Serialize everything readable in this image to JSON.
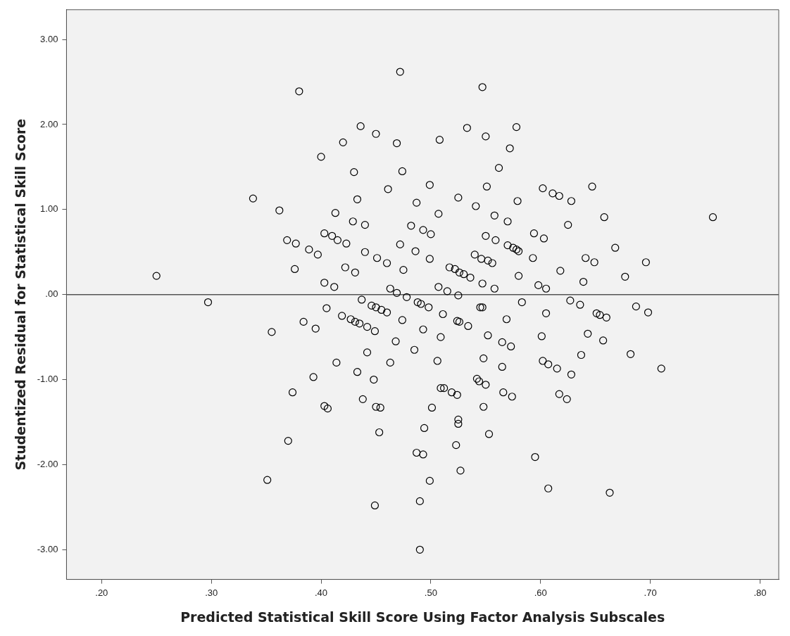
{
  "chart_data": {
    "type": "scatter",
    "xlabel": "Predicted Statistical Skill Score Using Factor Analysis Subscales",
    "ylabel": "Studentized Residual for Statistical Skill Score",
    "color": "#000000",
    "marker": "circle",
    "legend": false,
    "x": [
      0.472,
      0.38,
      0.436,
      0.45,
      0.42,
      0.469,
      0.4,
      0.43,
      0.474,
      0.499,
      0.461,
      0.433,
      0.487,
      0.338,
      0.362,
      0.413,
      0.429,
      0.44,
      0.482,
      0.493,
      0.5,
      0.403,
      0.41,
      0.415,
      0.423,
      0.369,
      0.377,
      0.389,
      0.397,
      0.44,
      0.451,
      0.46,
      0.472,
      0.486,
      0.499,
      0.376,
      0.422,
      0.431,
      0.475,
      0.403,
      0.412,
      0.463,
      0.469,
      0.25,
      0.547,
      0.533,
      0.578,
      0.508,
      0.55,
      0.572,
      0.562,
      0.551,
      0.525,
      0.541,
      0.579,
      0.507,
      0.558,
      0.57,
      0.602,
      0.611,
      0.617,
      0.628,
      0.647,
      0.658,
      0.757,
      0.625,
      0.55,
      0.559,
      0.57,
      0.575,
      0.578,
      0.58,
      0.594,
      0.603,
      0.54,
      0.546,
      0.552,
      0.556,
      0.593,
      0.517,
      0.522,
      0.526,
      0.53,
      0.536,
      0.547,
      0.558,
      0.58,
      0.618,
      0.641,
      0.649,
      0.668,
      0.696,
      0.677,
      0.639,
      0.598,
      0.605,
      0.507,
      0.515,
      0.525,
      0.583,
      0.627,
      0.636,
      0.687,
      0.698,
      0.651,
      0.654,
      0.66,
      0.498,
      0.511,
      0.524,
      0.526,
      0.534,
      0.545,
      0.547,
      0.569,
      0.605,
      0.552,
      0.565,
      0.573,
      0.601,
      0.643,
      0.657,
      0.637,
      0.682,
      0.71,
      0.602,
      0.607,
      0.615,
      0.628,
      0.509,
      0.493,
      0.506,
      0.548,
      0.565,
      0.542,
      0.544,
      0.55,
      0.509,
      0.512,
      0.519,
      0.524,
      0.566,
      0.574,
      0.617,
      0.624,
      0.501,
      0.548,
      0.525,
      0.525,
      0.494,
      0.553,
      0.523,
      0.487,
      0.493,
      0.595,
      0.527,
      0.499,
      0.607,
      0.663,
      0.437,
      0.446,
      0.45,
      0.455,
      0.46,
      0.405,
      0.419,
      0.427,
      0.431,
      0.435,
      0.442,
      0.449,
      0.474,
      0.478,
      0.488,
      0.491,
      0.468,
      0.485,
      0.442,
      0.463,
      0.414,
      0.433,
      0.448,
      0.393,
      0.374,
      0.403,
      0.406,
      0.438,
      0.45,
      0.454,
      0.453,
      0.37,
      0.351,
      0.449,
      0.49,
      0.49,
      0.355,
      0.384,
      0.395,
      0.297
    ],
    "values": [
      2.62,
      2.39,
      1.98,
      1.89,
      1.79,
      1.78,
      1.62,
      1.44,
      1.45,
      1.29,
      1.24,
      1.12,
      1.08,
      1.13,
      0.99,
      0.96,
      0.86,
      0.82,
      0.81,
      0.76,
      0.71,
      0.72,
      0.69,
      0.64,
      0.6,
      0.64,
      0.6,
      0.53,
      0.47,
      0.5,
      0.43,
      0.37,
      0.59,
      0.51,
      0.42,
      0.3,
      0.32,
      0.26,
      0.29,
      0.14,
      0.09,
      0.07,
      0.02,
      0.22,
      2.44,
      1.96,
      1.97,
      1.82,
      1.86,
      1.72,
      1.49,
      1.27,
      1.14,
      1.04,
      1.1,
      0.95,
      0.93,
      0.86,
      1.25,
      1.19,
      1.16,
      1.1,
      1.27,
      0.91,
      0.91,
      0.82,
      0.69,
      0.64,
      0.58,
      0.55,
      0.53,
      0.51,
      0.72,
      0.66,
      0.47,
      0.42,
      0.4,
      0.37,
      0.43,
      0.32,
      0.3,
      0.26,
      0.24,
      0.2,
      0.13,
      0.07,
      0.22,
      0.28,
      0.43,
      0.38,
      0.55,
      0.38,
      0.21,
      0.15,
      0.11,
      0.07,
      0.09,
      0.04,
      -0.01,
      -0.09,
      -0.07,
      -0.12,
      -0.14,
      -0.21,
      -0.22,
      -0.24,
      -0.27,
      -0.15,
      -0.23,
      -0.31,
      -0.32,
      -0.37,
      -0.15,
      -0.15,
      -0.29,
      -0.22,
      -0.48,
      -0.56,
      -0.61,
      -0.49,
      -0.46,
      -0.54,
      -0.71,
      -0.7,
      -0.87,
      -0.78,
      -0.82,
      -0.87,
      -0.94,
      -0.5,
      -0.41,
      -0.78,
      -0.75,
      -0.85,
      -0.99,
      -1.02,
      -1.06,
      -1.1,
      -1.1,
      -1.15,
      -1.18,
      -1.15,
      -1.2,
      -1.17,
      -1.23,
      -1.33,
      -1.32,
      -1.47,
      -1.52,
      -1.57,
      -1.64,
      -1.77,
      -1.86,
      -1.88,
      -1.91,
      -2.07,
      -2.19,
      -2.28,
      -2.33,
      -0.06,
      -0.13,
      -0.15,
      -0.18,
      -0.21,
      -0.16,
      -0.25,
      -0.29,
      -0.32,
      -0.34,
      -0.38,
      -0.43,
      -0.3,
      -0.03,
      -0.09,
      -0.11,
      -0.55,
      -0.65,
      -0.68,
      -0.8,
      -0.8,
      -0.91,
      -1.0,
      -0.97,
      -1.15,
      -1.31,
      -1.34,
      -1.23,
      -1.32,
      -1.33,
      -1.62,
      -1.72,
      -2.18,
      -2.48,
      -2.43,
      -3.0,
      -0.44,
      -0.32,
      -0.4,
      -0.09
    ],
    "xlim": [
      0.168,
      0.817
    ],
    "ylim": [
      -3.35,
      3.35
    ],
    "xticks": [
      {
        "value": 0.2,
        "label": ".20"
      },
      {
        "value": 0.3,
        "label": ".30"
      },
      {
        "value": 0.4,
        "label": ".40"
      },
      {
        "value": 0.5,
        "label": ".50"
      },
      {
        "value": 0.6,
        "label": ".60"
      },
      {
        "value": 0.7,
        "label": ".70"
      },
      {
        "value": 0.8,
        "label": ".80"
      }
    ],
    "yticks": [
      {
        "value": -3,
        "label": "-3.00"
      },
      {
        "value": -2,
        "label": "-2.00"
      },
      {
        "value": -1,
        "label": "-1.00"
      },
      {
        "value": 0,
        "label": ".00"
      },
      {
        "value": 1,
        "label": "1.00"
      },
      {
        "value": 2,
        "label": "2.00"
      },
      {
        "value": 3,
        "label": "3.00"
      }
    ],
    "ref_lines": [
      {
        "axis": "y",
        "value": 0,
        "color": "#555555"
      }
    ]
  }
}
